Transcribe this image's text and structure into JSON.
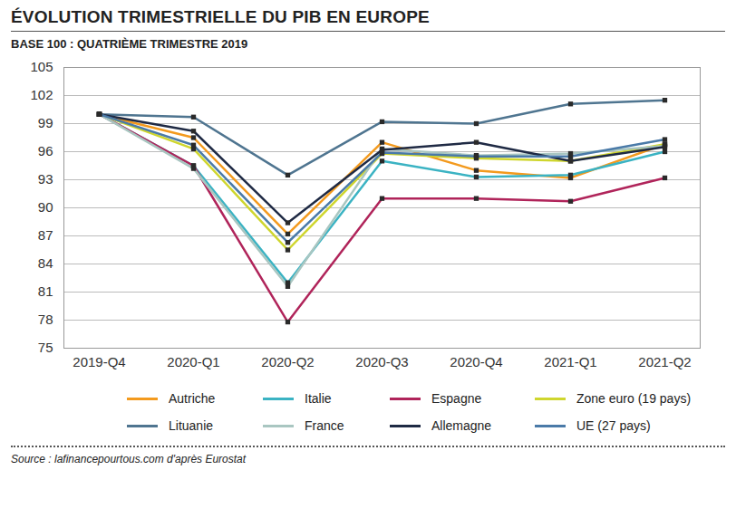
{
  "chart_data": {
    "type": "line",
    "title": "ÉVOLUTION TRIMESTRIELLE DU PIB EN EUROPE",
    "subtitle": "BASE 100 : QUATRIÈME TRIMESTRE 2019",
    "source": "Source : lafinancepourtous.com d'après Eurostat",
    "categories": [
      "2019-Q4",
      "2020-Q1",
      "2020-Q2",
      "2020-Q3",
      "2020-Q4",
      "2021-Q1",
      "2021-Q2"
    ],
    "ylim": [
      75,
      105
    ],
    "yticks": [
      75,
      78,
      81,
      84,
      87,
      90,
      93,
      96,
      99,
      102,
      105
    ],
    "grid": true,
    "marker": "square",
    "legend": "bottom",
    "series": [
      {
        "name": "Autriche",
        "color": "#f39a1e",
        "values": [
          100,
          97.5,
          87.2,
          97.0,
          94.0,
          93.2,
          96.8
        ]
      },
      {
        "name": "Italie",
        "color": "#3bb3c3",
        "values": [
          100,
          94.5,
          82.0,
          95.0,
          93.3,
          93.5,
          96.0
        ]
      },
      {
        "name": "Espagne",
        "color": "#b0245a",
        "values": [
          100,
          94.5,
          77.8,
          91.0,
          91.0,
          90.7,
          93.2
        ]
      },
      {
        "name": "Zone euro (19 pays)",
        "color": "#cfd62e",
        "values": [
          100,
          96.3,
          85.5,
          95.8,
          95.3,
          95.0,
          96.8
        ]
      },
      {
        "name": "Lituanie",
        "color": "#4f7590",
        "values": [
          100,
          99.7,
          93.5,
          99.2,
          99.0,
          101.1,
          101.5
        ]
      },
      {
        "name": "France",
        "color": "#a9c6c1",
        "values": [
          100,
          94.2,
          81.6,
          96.3,
          95.6,
          95.8,
          96.6
        ]
      },
      {
        "name": "Allemagne",
        "color": "#1f2a44",
        "values": [
          100,
          98.2,
          88.4,
          96.2,
          97.0,
          95.0,
          96.5
        ]
      },
      {
        "name": "UE (27 pays)",
        "color": "#4a7aa8",
        "values": [
          100,
          96.7,
          86.3,
          95.9,
          95.5,
          95.5,
          97.3
        ]
      }
    ]
  }
}
